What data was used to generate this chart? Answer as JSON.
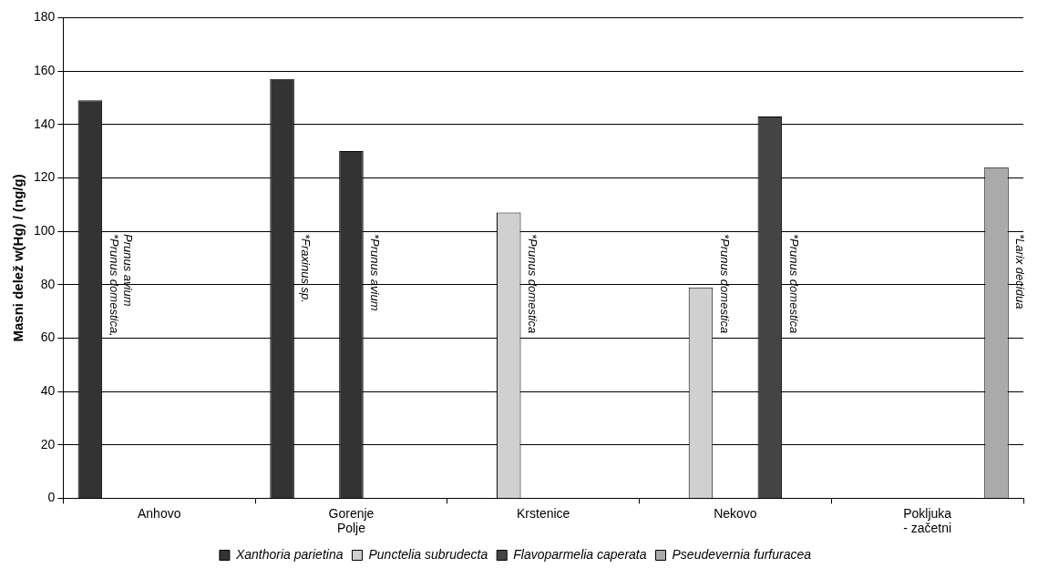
{
  "chart_data": {
    "type": "bar",
    "ylabel": "Masni delež w(Hg) / (ng/g)",
    "categories": [
      "Anhovo",
      "Gorenje\nPolje",
      "Krstenice",
      "Nekovo",
      "Pokljuka\n- začetni"
    ],
    "series": [
      {
        "name": "Xanthoria parietina",
        "color": "#333333",
        "values": [
          149,
          157,
          null,
          null,
          null
        ]
      },
      {
        "name": "Punctelia subrudecta",
        "color": "#d0d0d0",
        "values": [
          null,
          null,
          107,
          79,
          null
        ]
      },
      {
        "color": "#333333",
        "values": [
          null,
          130,
          null,
          null,
          null
        ]
      },
      {
        "name": "Flavoparmelia caperata",
        "color": "#444444",
        "values": [
          null,
          null,
          null,
          143,
          null
        ]
      },
      {
        "name": "Pseudevernia furfuracea",
        "color": "#aaaaaa",
        "values": [
          null,
          null,
          null,
          null,
          124
        ]
      }
    ],
    "ylim": [
      0,
      180
    ],
    "yticks": [
      0,
      20,
      40,
      60,
      80,
      100,
      120,
      140,
      160,
      180
    ],
    "grid": "y",
    "legend": "bottom",
    "annotations": [
      "*Prunus domestica,\nPrunus avium",
      "*Fraxinus sp.",
      "*Prunus avium",
      "*Prunus domestica",
      "*Prunus domestica",
      "*Prunus domestica",
      "*Larix decidua"
    ]
  }
}
